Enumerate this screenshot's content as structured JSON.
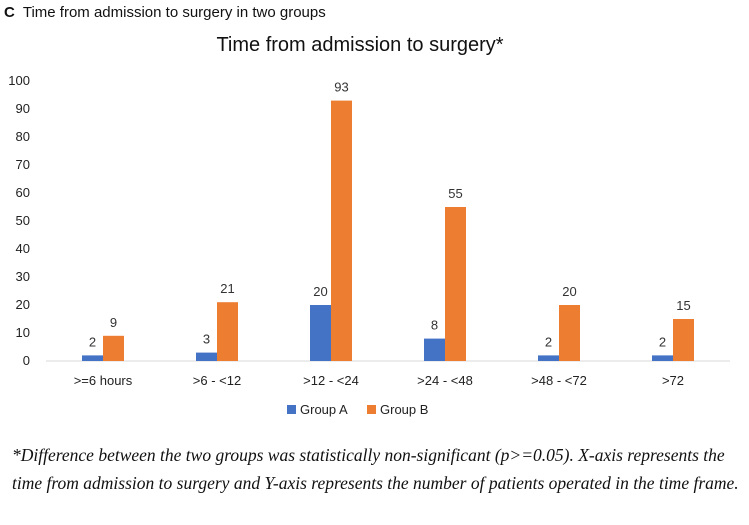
{
  "panel": {
    "letter": "C",
    "title": "Time from admission to surgery in two groups"
  },
  "chart_data": {
    "type": "bar",
    "title": "Time from admission to surgery*",
    "categories": [
      ">=6 hours",
      ">6 - <12",
      ">12 - <24",
      ">24 - <48",
      ">48 - <72",
      ">72"
    ],
    "series": [
      {
        "name": "Group A",
        "values": [
          2,
          3,
          20,
          8,
          2,
          2
        ],
        "color": "#4472C4"
      },
      {
        "name": "Group B",
        "values": [
          9,
          21,
          93,
          55,
          20,
          15
        ],
        "color": "#ED7D31"
      }
    ],
    "ylim": [
      0,
      100
    ],
    "yticks": [
      0,
      10,
      20,
      30,
      40,
      50,
      60,
      70,
      80,
      90,
      100
    ],
    "xlabel": "",
    "ylabel": "",
    "grid": false,
    "legend": "bottom"
  },
  "caption": "*Difference between the two groups was statistically non-significant (p>=0.05). X-axis represents the time from admission to surgery and Y-axis represents the number of patients operated in the time frame."
}
